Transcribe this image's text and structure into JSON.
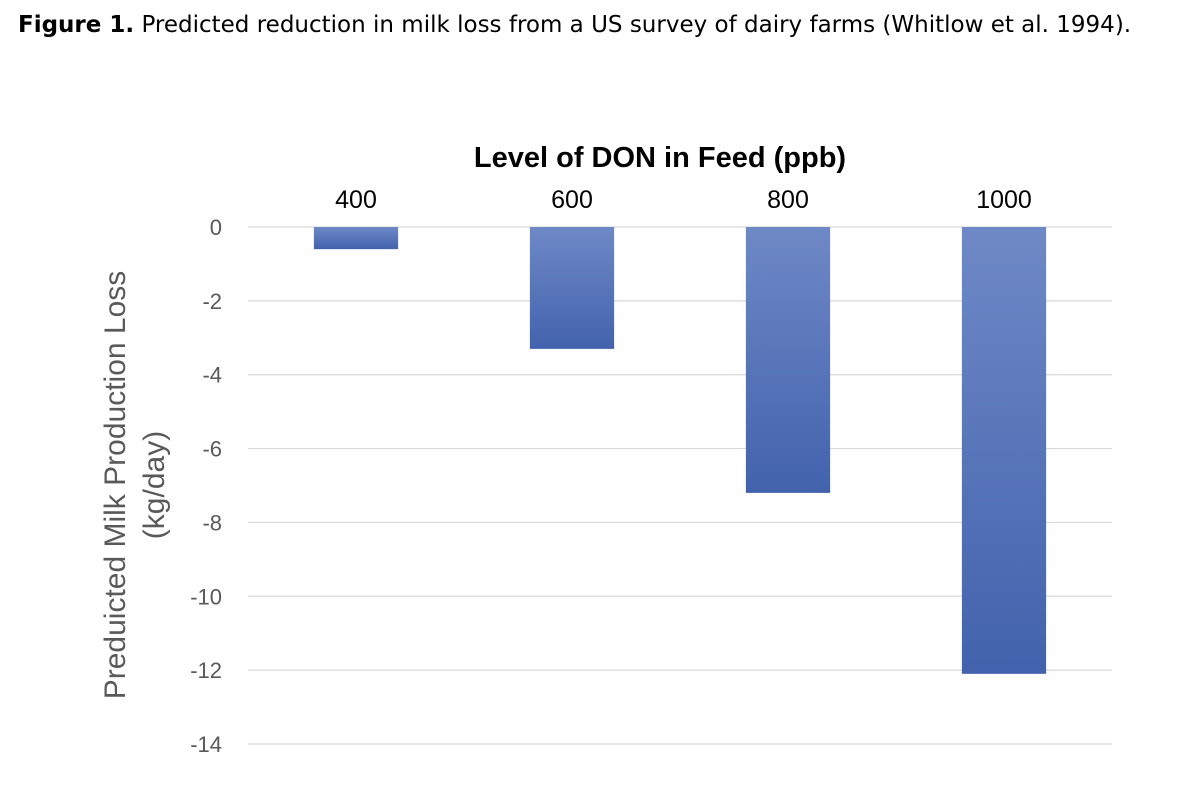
{
  "caption": {
    "label": "Figure 1.",
    "text": "Predicted reduction in milk loss from a US survey of dairy farms (Whitlow et al. 1994)."
  },
  "colors": {
    "bar_top": "#6f89c6",
    "bar_bottom": "#4262ad",
    "grid": "#d9d9d9"
  },
  "chart_data": {
    "type": "bar",
    "title": "Level of DON in Feed (ppb)",
    "xlabel": "Level of DON in Feed (ppb)",
    "ylabel_line1": "Preduicted Milk Production Loss",
    "ylabel_line2": "(kg/day)",
    "categories": [
      "400",
      "600",
      "800",
      "1000"
    ],
    "values": [
      -0.6,
      -3.3,
      -7.2,
      -12.1
    ],
    "ylim": [
      -14,
      0
    ],
    "yticks": [
      0,
      -2,
      -4,
      -6,
      -8,
      -10,
      -12,
      -14
    ],
    "grid": true,
    "x_axis_position": "top"
  }
}
